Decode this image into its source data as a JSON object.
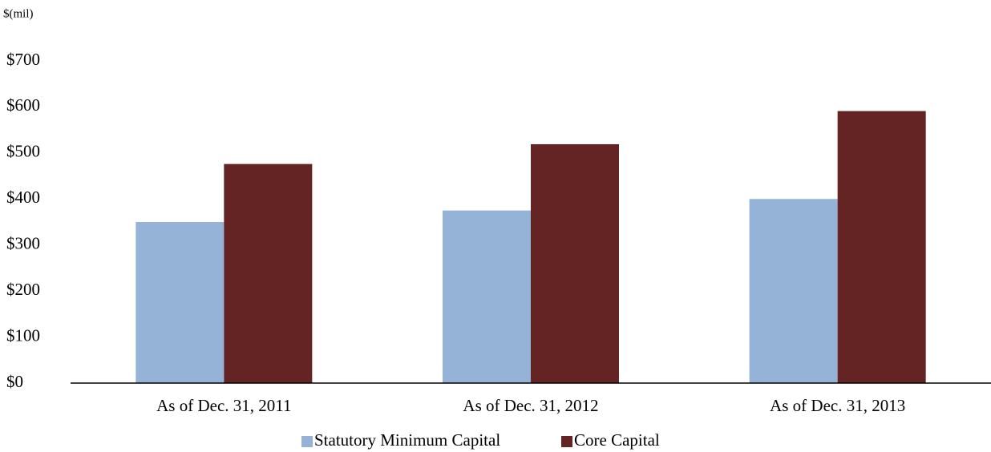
{
  "chart_data": {
    "type": "bar",
    "y_axis_label": "$(mil)",
    "categories": [
      "As of Dec. 31, 2011",
      "As of Dec. 31, 2012",
      "As of Dec. 31, 2013"
    ],
    "series": [
      {
        "name": "Statutory Minimum Capital",
        "color": "#95b3d7",
        "values": [
          350,
          375,
          400
        ]
      },
      {
        "name": "Core Capital",
        "color": "#632423",
        "values": [
          476,
          519,
          591
        ]
      }
    ],
    "ylim": [
      0,
      700
    ],
    "yticks": [
      {
        "value": 0,
        "label": "$0"
      },
      {
        "value": 100,
        "label": "$100"
      },
      {
        "value": 200,
        "label": "$200"
      },
      {
        "value": 300,
        "label": "$300"
      },
      {
        "value": 400,
        "label": "$400"
      },
      {
        "value": 500,
        "label": "$500"
      },
      {
        "value": 600,
        "label": "$600"
      },
      {
        "value": 700,
        "label": "$700"
      }
    ],
    "grid": false,
    "legend": "bottom"
  }
}
